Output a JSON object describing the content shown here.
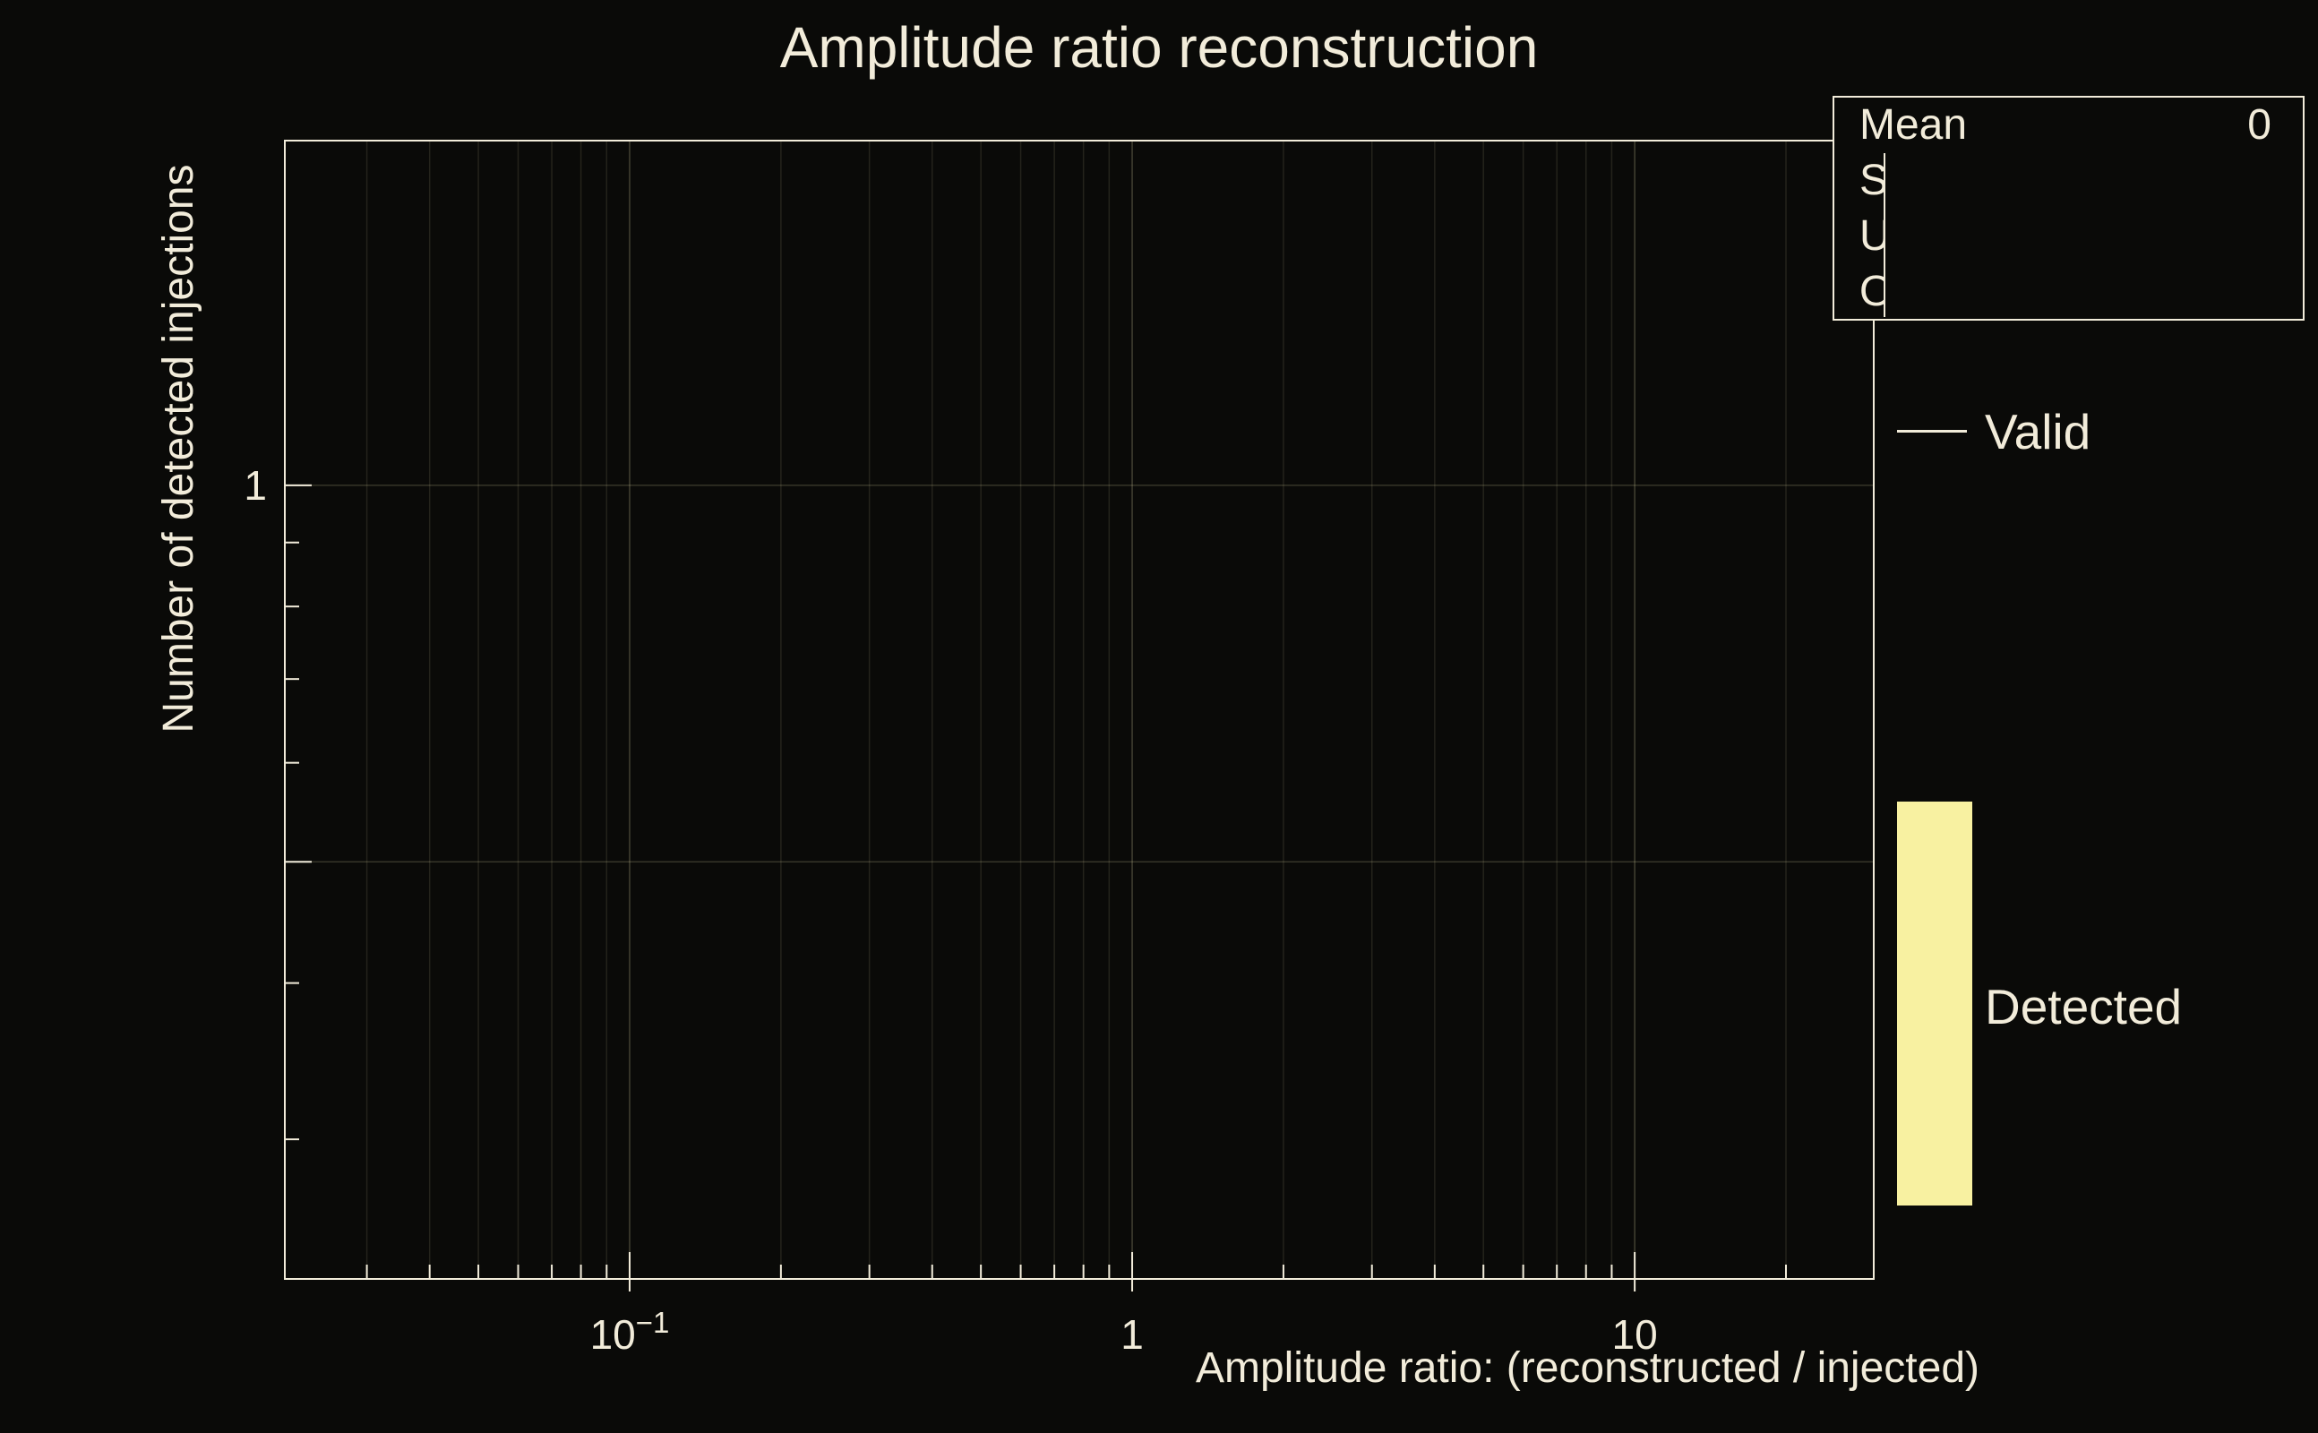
{
  "chart_data": {
    "type": "histogram",
    "title": "Amplitude ratio reconstruction",
    "xlabel": "Amplitude ratio: (reconstructed / injected)",
    "ylabel": "Number of detected injections",
    "xscale": "log",
    "yscale": "log",
    "xlim": [
      0.0206,
      29.9
    ],
    "ylim": [
      0.232,
      1.886
    ],
    "grid": true,
    "legend_position": "right",
    "x_ticks": [
      {
        "value": 0.1,
        "base": "10",
        "exp": "−1"
      },
      {
        "value": 1,
        "base": "1",
        "exp": ""
      },
      {
        "value": 10,
        "base": "10",
        "exp": ""
      }
    ],
    "y_ticks": [
      {
        "value": 1,
        "label": "1"
      },
      {
        "value": 0.5,
        "label": ""
      }
    ],
    "series": [
      {
        "name": "Valid",
        "style": "line",
        "color": "#f2ecda",
        "values": []
      },
      {
        "name": "Detected",
        "style": "filled",
        "color": "#f8f1a1",
        "values": []
      }
    ],
    "stats": {
      "rows": [
        {
          "label": "Mean",
          "value": "0"
        }
      ],
      "clipped_rows": [
        "S",
        "U",
        "O"
      ]
    },
    "colors": {
      "background": "#0a0a08",
      "foreground": "#f2ecda",
      "detected_fill": "#f8f1a1",
      "grid": "#d8d0a0"
    }
  }
}
